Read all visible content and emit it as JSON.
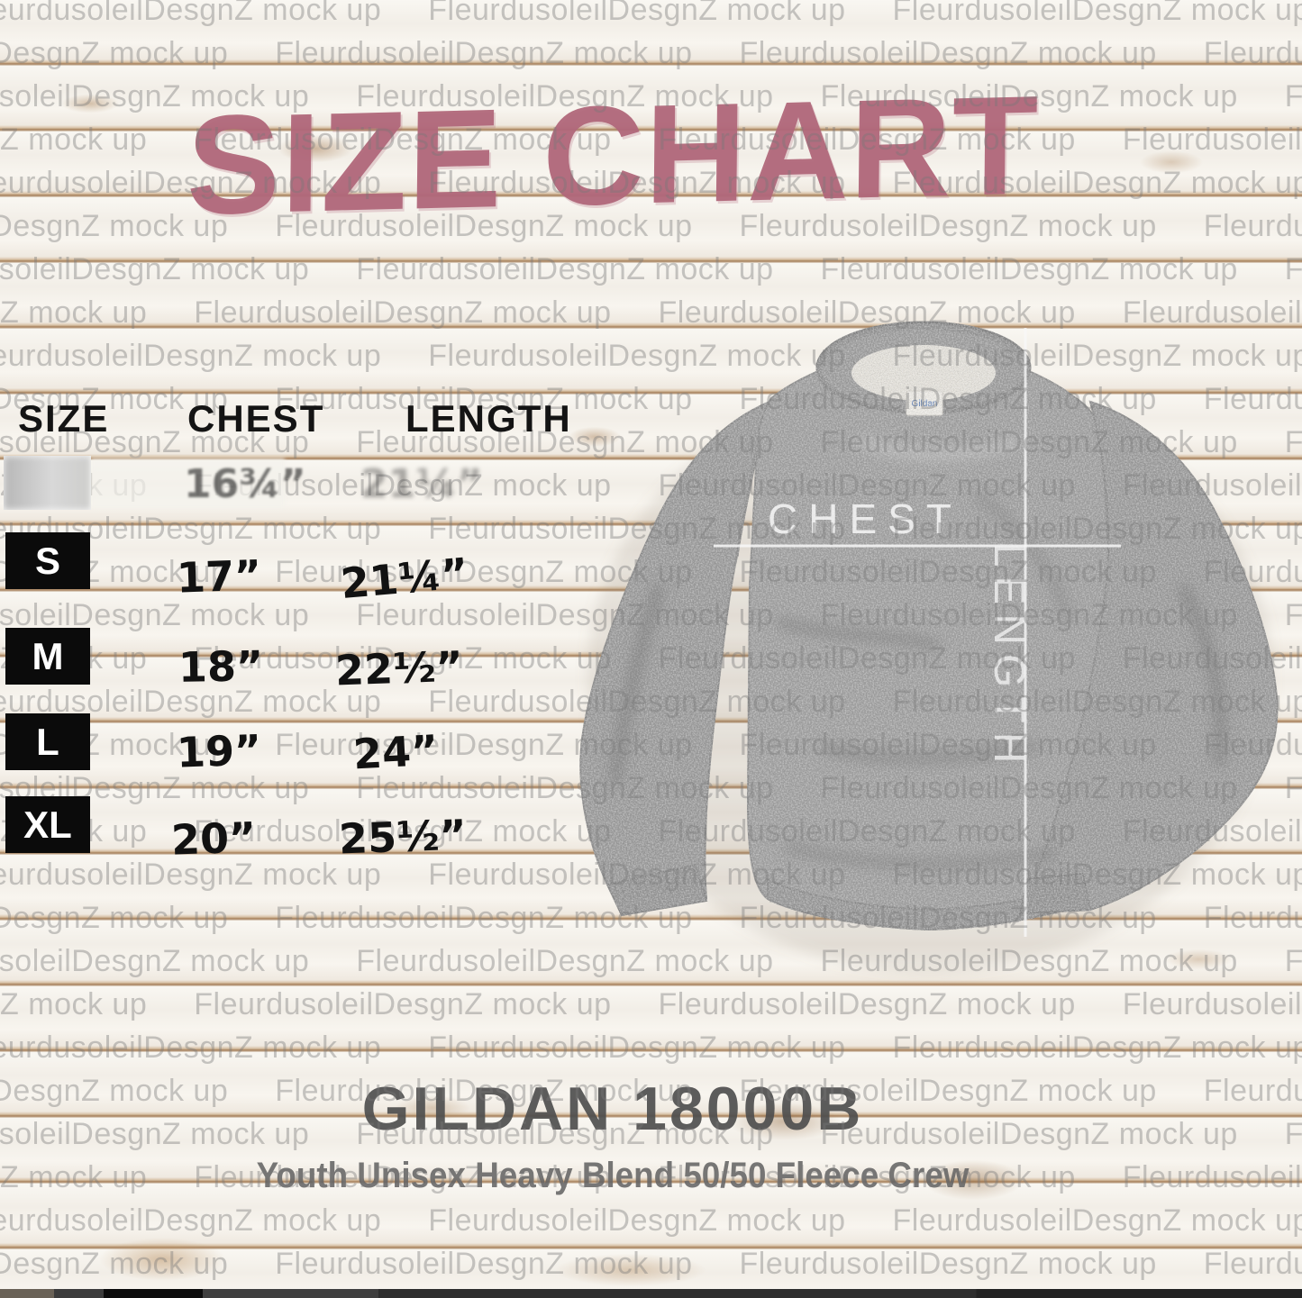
{
  "title": "SIZE CHART",
  "watermark": {
    "text": "FleurdusoleilDesgnZ mock up",
    "color": "#9a9a9a"
  },
  "size_table": {
    "headers": [
      "SIZE",
      "CHEST",
      "LENGTH"
    ],
    "erased_row": {
      "chest": "16¾”",
      "length": "21¼”"
    },
    "rows": [
      {
        "size": "S",
        "chest": "17”",
        "length": "21¼”"
      },
      {
        "size": "M",
        "chest": "18”",
        "length": "22½”"
      },
      {
        "size": "L",
        "chest": "19”",
        "length": "24”"
      },
      {
        "size": "XL",
        "chest": "20”",
        "length": "25½”"
      }
    ]
  },
  "garment": {
    "chest_label": "CHEST",
    "length_label": "LENGTH",
    "neck_tag": "Gildan",
    "color": "#9d9d9d"
  },
  "footer": {
    "product": "GILDAN 18000B",
    "description": "Youth Unisex Heavy Blend 50/50 Fleece Crew"
  },
  "colors": {
    "title": "#b0677a",
    "wood_seam": "#a47c57",
    "table_text": "#141414",
    "size_box": "#0b0b0b",
    "measure_line": "#f5f5f5"
  },
  "chart_data": {
    "type": "table",
    "title": "SIZE CHART",
    "columns": [
      "SIZE",
      "CHEST",
      "LENGTH"
    ],
    "rows": [
      [
        "S",
        "17\"",
        "21¼\""
      ],
      [
        "M",
        "18\"",
        "22½\""
      ],
      [
        "L",
        "19\"",
        "24\""
      ],
      [
        "XL",
        "20\"",
        "25½\""
      ]
    ]
  }
}
